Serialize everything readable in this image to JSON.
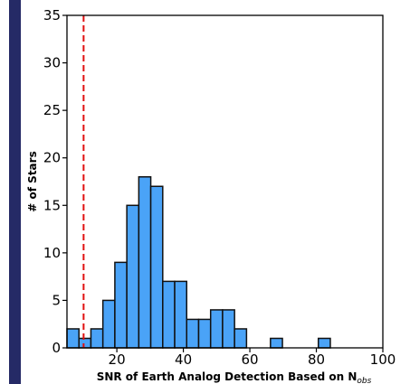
{
  "colors": {
    "bar_fill": "#4aa3f7",
    "bar_edge": "#111111",
    "threshold_line": "#e01010",
    "edge_bar": "#252a66"
  },
  "chart_data": {
    "type": "bar",
    "title": "",
    "xlabel_main": "SNR of Earth Analog Detection Based on N",
    "xlabel_sub": "obs",
    "ylabel": "# of Stars",
    "xlim": [
      5,
      100
    ],
    "ylim": [
      0,
      35
    ],
    "bin_width": 3.6,
    "bins": [
      {
        "left": 5.0,
        "count": 2
      },
      {
        "left": 8.6,
        "count": 1
      },
      {
        "left": 12.2,
        "count": 2
      },
      {
        "left": 15.8,
        "count": 5
      },
      {
        "left": 19.4,
        "count": 9
      },
      {
        "left": 23.0,
        "count": 15
      },
      {
        "left": 26.6,
        "count": 18
      },
      {
        "left": 30.2,
        "count": 17
      },
      {
        "left": 33.8,
        "count": 7
      },
      {
        "left": 37.4,
        "count": 7
      },
      {
        "left": 41.0,
        "count": 3
      },
      {
        "left": 44.6,
        "count": 3
      },
      {
        "left": 48.2,
        "count": 4
      },
      {
        "left": 51.8,
        "count": 4
      },
      {
        "left": 55.4,
        "count": 2
      },
      {
        "left": 66.2,
        "count": 1
      },
      {
        "left": 80.6,
        "count": 1
      }
    ],
    "x_ticks": [
      20,
      40,
      60,
      80,
      100
    ],
    "y_ticks": [
      0,
      5,
      10,
      15,
      20,
      25,
      30,
      35
    ],
    "threshold_x": 10,
    "grid": false
  }
}
